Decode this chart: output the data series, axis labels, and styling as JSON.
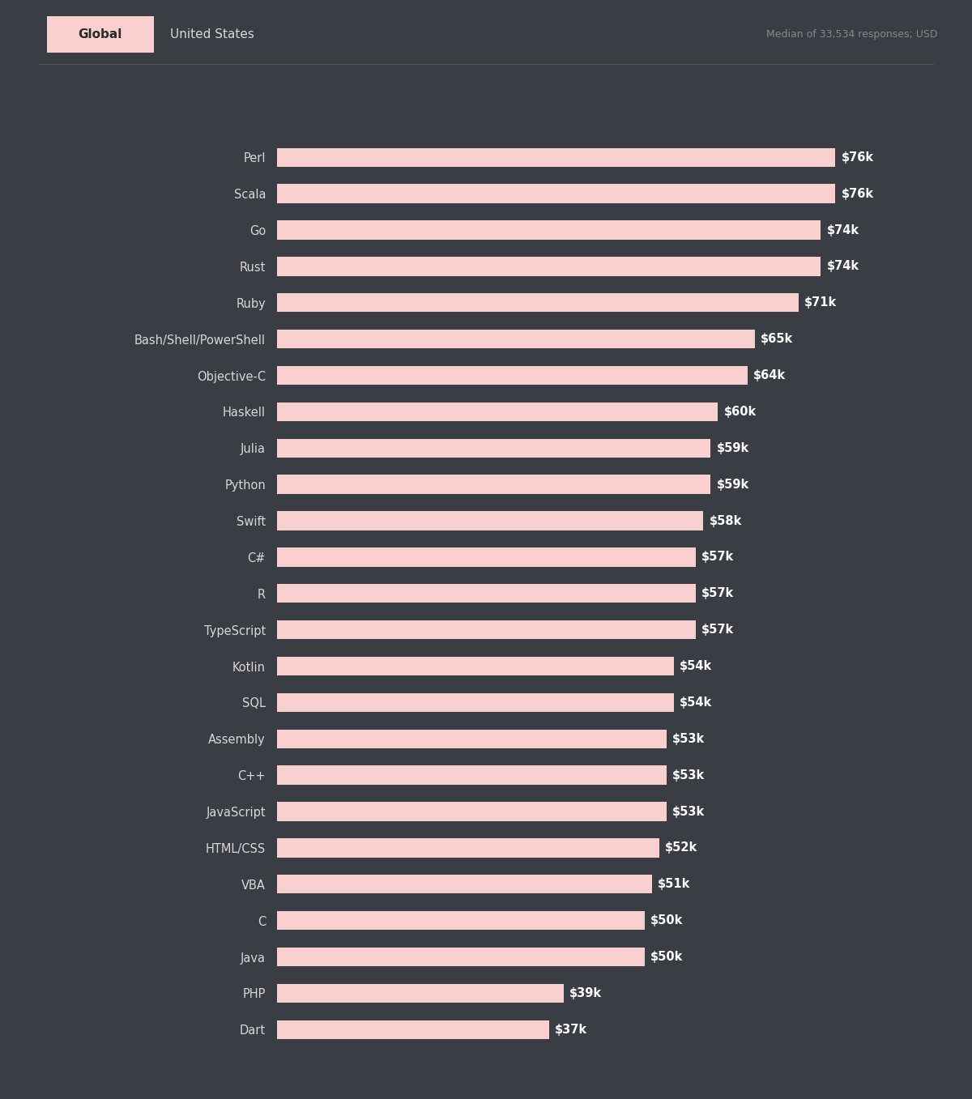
{
  "languages": [
    "Perl",
    "Scala",
    "Go",
    "Rust",
    "Ruby",
    "Bash/Shell/PowerShell",
    "Objective-C",
    "Haskell",
    "Julia",
    "Python",
    "Swift",
    "C#",
    "R",
    "TypeScript",
    "Kotlin",
    "SQL",
    "Assembly",
    "C++",
    "JavaScript",
    "HTML/CSS",
    "VBA",
    "C",
    "Java",
    "PHP",
    "Dart"
  ],
  "values": [
    76,
    76,
    74,
    74,
    71,
    65,
    64,
    60,
    59,
    59,
    58,
    57,
    57,
    57,
    54,
    54,
    53,
    53,
    53,
    52,
    51,
    50,
    50,
    39,
    37
  ],
  "labels": [
    "$76k",
    "$76k",
    "$74k",
    "$74k",
    "$71k",
    "$65k",
    "$64k",
    "$60k",
    "$59k",
    "$59k",
    "$58k",
    "$57k",
    "$57k",
    "$57k",
    "$54k",
    "$54k",
    "$53k",
    "$53k",
    "$53k",
    "$52k",
    "$51k",
    "$50k",
    "$50k",
    "$39k",
    "$37k"
  ],
  "bar_color": "#f8d0d0",
  "bg_color": "#3a3d44",
  "text_color": "#ffffff",
  "label_color": "#d8d8d8",
  "header_text": "Median of 33,534 responses; USD",
  "tab1_text": "Global",
  "tab2_text": "United States",
  "max_value": 76,
  "xlim_max": 84
}
